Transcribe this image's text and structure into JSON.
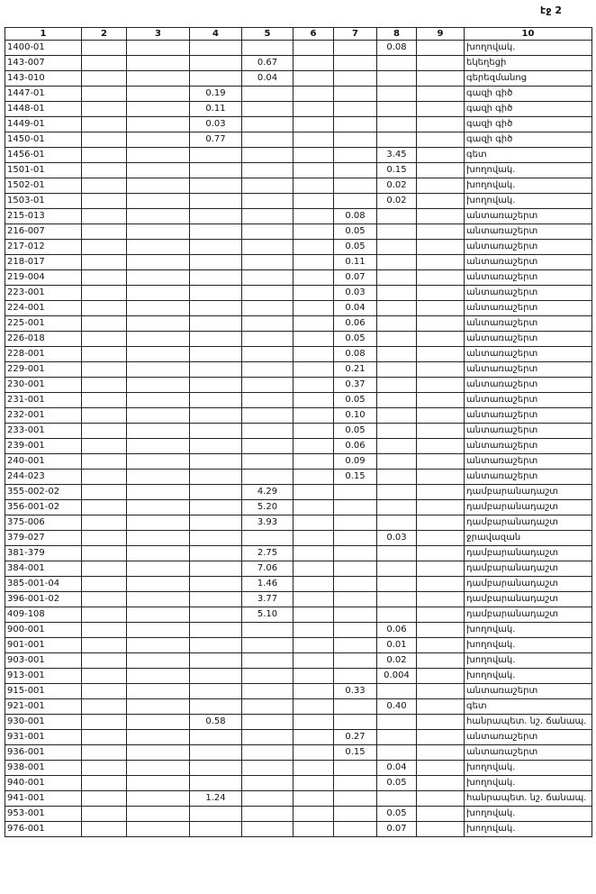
{
  "page_label": "էջ 2",
  "table": {
    "header": [
      "1",
      "2",
      "3",
      "4",
      "5",
      "6",
      "7",
      "8",
      "9",
      "10"
    ],
    "rows": [
      [
        "1400-01",
        null,
        null,
        null,
        null,
        null,
        null,
        "0.08",
        null,
        "խողովակ."
      ],
      [
        "143-007",
        null,
        null,
        null,
        "0.67",
        null,
        null,
        null,
        null,
        "եկեղեցի"
      ],
      [
        "143-010",
        null,
        null,
        null,
        "0.04",
        null,
        null,
        null,
        null,
        "գերեզմանոց"
      ],
      [
        "1447-01",
        null,
        null,
        "0.19",
        null,
        null,
        null,
        null,
        null,
        "գազի գիծ"
      ],
      [
        "1448-01",
        null,
        null,
        "0.11",
        null,
        null,
        null,
        null,
        null,
        "գազի գիծ"
      ],
      [
        "1449-01",
        null,
        null,
        "0.03",
        null,
        null,
        null,
        null,
        null,
        "գազի գիծ"
      ],
      [
        "1450-01",
        null,
        null,
        "0.77",
        null,
        null,
        null,
        null,
        null,
        "գազի գիծ"
      ],
      [
        "1456-01",
        null,
        null,
        null,
        null,
        null,
        null,
        "3.45",
        null,
        "գետ"
      ],
      [
        "1501-01",
        null,
        null,
        null,
        null,
        null,
        null,
        "0.15",
        null,
        "խողովակ."
      ],
      [
        "1502-01",
        null,
        null,
        null,
        null,
        null,
        null,
        "0.02",
        null,
        "խողովակ."
      ],
      [
        "1503-01",
        null,
        null,
        null,
        null,
        null,
        null,
        "0.02",
        null,
        "խողովակ."
      ],
      [
        "215-013",
        null,
        null,
        null,
        null,
        null,
        "0.08",
        null,
        null,
        "անտառաշերտ"
      ],
      [
        "216-007",
        null,
        null,
        null,
        null,
        null,
        "0.05",
        null,
        null,
        "անտառաշերտ"
      ],
      [
        "217-012",
        null,
        null,
        null,
        null,
        null,
        "0.05",
        null,
        null,
        "անտառաշերտ"
      ],
      [
        "218-017",
        null,
        null,
        null,
        null,
        null,
        "0.11",
        null,
        null,
        "անտառաշերտ"
      ],
      [
        "219-004",
        null,
        null,
        null,
        null,
        null,
        "0.07",
        null,
        null,
        "անտառաշերտ"
      ],
      [
        "223-001",
        null,
        null,
        null,
        null,
        null,
        "0.03",
        null,
        null,
        "անտառաշերտ"
      ],
      [
        "224-001",
        null,
        null,
        null,
        null,
        null,
        "0.04",
        null,
        null,
        "անտառաշերտ"
      ],
      [
        "225-001",
        null,
        null,
        null,
        null,
        null,
        "0.06",
        null,
        null,
        "անտառաշերտ"
      ],
      [
        "226-018",
        null,
        null,
        null,
        null,
        null,
        "0.05",
        null,
        null,
        "անտառաշերտ"
      ],
      [
        "228-001",
        null,
        null,
        null,
        null,
        null,
        "0.08",
        null,
        null,
        "անտառաշերտ"
      ],
      [
        "229-001",
        null,
        null,
        null,
        null,
        null,
        "0.21",
        null,
        null,
        "անտառաշերտ"
      ],
      [
        "230-001",
        null,
        null,
        null,
        null,
        null,
        "0.37",
        null,
        null,
        "անտառաշերտ"
      ],
      [
        "231-001",
        null,
        null,
        null,
        null,
        null,
        "0.05",
        null,
        null,
        "անտառաշերտ"
      ],
      [
        "232-001",
        null,
        null,
        null,
        null,
        null,
        "0.10",
        null,
        null,
        "անտառաշերտ"
      ],
      [
        "233-001",
        null,
        null,
        null,
        null,
        null,
        "0.05",
        null,
        null,
        "անտառաշերտ"
      ],
      [
        "239-001",
        null,
        null,
        null,
        null,
        null,
        "0.06",
        null,
        null,
        "անտառաշերտ"
      ],
      [
        "240-001",
        null,
        null,
        null,
        null,
        null,
        "0.09",
        null,
        null,
        "անտառաշերտ"
      ],
      [
        "244-023",
        null,
        null,
        null,
        null,
        null,
        "0.15",
        null,
        null,
        "անտառաշերտ"
      ],
      [
        "355-002-02",
        null,
        null,
        null,
        "4.29",
        null,
        null,
        null,
        null,
        "դամբարանադաշտ"
      ],
      [
        "356-001-02",
        null,
        null,
        null,
        "5.20",
        null,
        null,
        null,
        null,
        "դամբարանադաշտ"
      ],
      [
        "375-006",
        null,
        null,
        null,
        "3.93",
        null,
        null,
        null,
        null,
        "դամբարանադաշտ"
      ],
      [
        "379-027",
        null,
        null,
        null,
        null,
        null,
        null,
        "0.03",
        null,
        "ջրավազան"
      ],
      [
        "381-379",
        null,
        null,
        null,
        "2.75",
        null,
        null,
        null,
        null,
        "դամբարանադաշտ"
      ],
      [
        "384-001",
        null,
        null,
        null,
        "7.06",
        null,
        null,
        null,
        null,
        "դամբարանադաշտ"
      ],
      [
        "385-001-04",
        null,
        null,
        null,
        "1.46",
        null,
        null,
        null,
        null,
        "դամբարանադաշտ"
      ],
      [
        "396-001-02",
        null,
        null,
        null,
        "3.77",
        null,
        null,
        null,
        null,
        "դամբարանադաշտ"
      ],
      [
        "409-108",
        null,
        null,
        null,
        "5.10",
        null,
        null,
        null,
        null,
        "դամբարանադաշտ"
      ],
      [
        "900-001",
        null,
        null,
        null,
        null,
        null,
        null,
        "0.06",
        null,
        "խողովակ."
      ],
      [
        "901-001",
        null,
        null,
        null,
        null,
        null,
        null,
        "0.01",
        null,
        "խողովակ."
      ],
      [
        "903-001",
        null,
        null,
        null,
        null,
        null,
        null,
        "0.02",
        null,
        "խողովակ."
      ],
      [
        "913-001",
        null,
        null,
        null,
        null,
        null,
        null,
        "0.004",
        null,
        "խողովակ."
      ],
      [
        "915-001",
        null,
        null,
        null,
        null,
        null,
        "0.33",
        null,
        null,
        "անտառաշերտ"
      ],
      [
        "921-001",
        null,
        null,
        null,
        null,
        null,
        null,
        "0.40",
        null,
        "գետ"
      ],
      [
        "930-001",
        null,
        null,
        "0.58",
        null,
        null,
        null,
        null,
        null,
        "հանրապետ. նշ. ճանապ."
      ],
      [
        "931-001",
        null,
        null,
        null,
        null,
        null,
        "0.27",
        null,
        null,
        "անտառաշերտ"
      ],
      [
        "936-001",
        null,
        null,
        null,
        null,
        null,
        "0.15",
        null,
        null,
        "անտառաշերտ"
      ],
      [
        "938-001",
        null,
        null,
        null,
        null,
        null,
        null,
        "0.04",
        null,
        "խողովակ."
      ],
      [
        "940-001",
        null,
        null,
        null,
        null,
        null,
        null,
        "0.05",
        null,
        "խողովակ."
      ],
      [
        "941-001",
        null,
        null,
        "1.24",
        null,
        null,
        null,
        null,
        null,
        "հանրապետ. նշ. ճանապ."
      ],
      [
        "953-001",
        null,
        null,
        null,
        null,
        null,
        null,
        "0.05",
        null,
        "խողովակ."
      ],
      [
        "976-001",
        null,
        null,
        null,
        null,
        null,
        null,
        "0.07",
        null,
        "խողովակ."
      ]
    ]
  }
}
